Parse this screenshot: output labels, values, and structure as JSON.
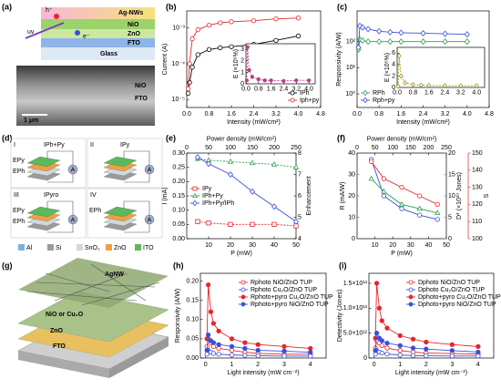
{
  "panel_labels": [
    "(a)",
    "(b)",
    "(c)",
    "(d)",
    "(e)",
    "(f)",
    "(g)",
    "(h)",
    "(i)"
  ],
  "panel_a": {
    "layers": [
      "Ag-NWs",
      "NiO",
      "ZnO",
      "FTO",
      "Glass"
    ],
    "labels": [
      "uv",
      "h⁺",
      "e⁻"
    ],
    "sem_labels": [
      "NiO",
      "FTO"
    ],
    "scale_bar": "1 μm"
  },
  "panel_d": {
    "subpanels": [
      {
        "numeral": "I",
        "current": "IPh+Py",
        "fields": [
          {
            "label": "EPy",
            "color": "#e8262a"
          },
          {
            "label": "EPh",
            "color": "#2a6fd0"
          }
        ]
      },
      {
        "numeral": "II",
        "current": "IPy",
        "fields": []
      },
      {
        "numeral": "III",
        "current": "IPyro",
        "fields": [
          {
            "label": "EPy",
            "color": "#e8262a"
          },
          {
            "label": "EPh",
            "color": "#2a6fd0"
          }
        ]
      },
      {
        "numeral": "IV",
        "current": null,
        "fields": [
          {
            "label": "EPh",
            "color": "#2a6fd0"
          }
        ]
      }
    ],
    "ammeter": "A",
    "legend": [
      {
        "name": "Al",
        "color": "#7fb0d8"
      },
      {
        "name": "Si",
        "color": "#9a9a9a"
      },
      {
        "name": "SnO₂",
        "color": "#cfd8e0"
      },
      {
        "name": "ZnO",
        "color": "#f0a040"
      },
      {
        "name": "ITO",
        "color": "#5cb85c"
      }
    ]
  },
  "panel_g": {
    "layers": [
      "AgNW",
      "NiO or Cu₂O",
      "ZnO",
      "FTO"
    ]
  },
  "chart_data": [
    {
      "type": "line",
      "xlabel": "Intensity (mW/cm²)",
      "ylabel": "Current (A)",
      "xlim": [
        0,
        4.8
      ],
      "xticks": [
        {
          "value": 0,
          "label": "0.0"
        },
        0.8,
        1.6,
        2.4,
        3.2,
        {
          "value": 4,
          "label": "4.0"
        },
        4.8
      ],
      "yscale": "log",
      "ylim": [
        6e-06,
        0.003
      ],
      "yticks": [
        {
          "value": 1e-05,
          "label": "10⁻⁵"
        },
        {
          "value": 0.0001,
          "label": "10⁻⁴"
        },
        {
          "value": 0.001,
          "label": "10⁻³"
        }
      ],
      "x": [
        0.05,
        0.1,
        0.2,
        0.4,
        0.8,
        1.2,
        1.6,
        2.4,
        3.2,
        4.0
      ],
      "series": [
        {
          "name": "IPh",
          "color": "#000000",
          "marker": "circle",
          "filled": false,
          "values": [
            1.5e-05,
            3e-05,
            8e-05,
            0.00018,
            0.00025,
            0.00028,
            0.0003,
            0.00035,
            0.00045,
            0.0006
          ]
        },
        {
          "name": "Iph+py",
          "color": "#e8262a",
          "marker": "circle",
          "filled": false,
          "values": [
            2e-05,
            0.0001,
            0.0005,
            0.0009,
            0.0012,
            0.0014,
            0.0015,
            0.0016,
            0.0018,
            0.0019
          ]
        }
      ],
      "legend": "lower right",
      "inset": {
        "type": "line",
        "ylabel": "E (×10⁵%)",
        "xlim": [
          0,
          4.4
        ],
        "xticks": [
          {
            "value": 0,
            "label": "0.0"
          },
          0.8,
          1.6,
          2.4,
          3.2,
          {
            "value": 4,
            "label": "4.0"
          }
        ],
        "ylim": [
          0,
          3.5
        ],
        "yticks": [
          0,
          1,
          2,
          3
        ],
        "x": [
          0.05,
          0.1,
          0.2,
          0.4,
          0.8,
          1.2,
          1.6,
          2.4,
          3.2,
          4.0
        ],
        "series": [
          {
            "color": "#c0398c",
            "marker": "circle",
            "filled": true,
            "dash": true,
            "values": [
              0.3,
              3.2,
              1.2,
              0.6,
              0.4,
              0.3,
              0.3,
              0.25,
              0.3,
              0.3
            ]
          }
        ]
      }
    },
    {
      "type": "line",
      "xlabel": "Intensity (mW/cm²)",
      "ylabel": "Responsivity (A/W)",
      "xlim": [
        0,
        4.8
      ],
      "xticks": [
        {
          "value": 0,
          "label": "0.0"
        },
        0.8,
        1.6,
        2.4,
        3.2,
        {
          "value": 4,
          "label": "4.0"
        },
        4.8
      ],
      "yscale": "log",
      "ylim": [
        0.3,
        1500
      ],
      "yticks": [
        {
          "value": 1,
          "label": "10⁰"
        },
        {
          "value": 10,
          "label": "10¹"
        },
        {
          "value": 100,
          "label": "10²"
        }
      ],
      "x": [
        0.05,
        0.1,
        0.2,
        0.4,
        0.8,
        1.2,
        1.6,
        2.4,
        3.2,
        4.0
      ],
      "series": [
        {
          "name": "RPh",
          "color": "#2e9e4f",
          "marker": "diamond",
          "filled": false,
          "values": [
            50,
            120,
            110,
            100,
            100,
            100,
            100,
            100,
            100,
            100
          ]
        },
        {
          "name": "Rph+py",
          "color": "#3b4fd8",
          "marker": "diamond",
          "filled": false,
          "values": [
            60,
            400,
            350,
            300,
            250,
            230,
            220,
            210,
            200,
            190
          ]
        }
      ],
      "legend": "lower left",
      "inset": {
        "type": "line",
        "ylabel": "E (×10⁵%)",
        "xlim": [
          0,
          4.4
        ],
        "xticks": [
          {
            "value": 0,
            "label": "0.0"
          },
          0.8,
          1.6,
          2.4,
          3.2,
          {
            "value": 4,
            "label": "4.0"
          }
        ],
        "ylim": [
          0,
          7
        ],
        "yticks": [
          0,
          2,
          4,
          6
        ],
        "x": [
          0.05,
          0.1,
          0.2,
          0.4,
          0.8,
          1.2,
          1.6,
          2.4,
          3.2,
          4.0
        ],
        "series": [
          {
            "color": "#9a9a1e",
            "marker": "diamond",
            "filled": false,
            "dash": true,
            "values": [
              0.2,
              5.5,
              2,
              0.8,
              0.5,
              0.4,
              0.35,
              0.3,
              0.3,
              0.3
            ]
          }
        ]
      }
    },
    {
      "type": "line",
      "xlabel": "P (mW)",
      "ylabel": "I (mA)",
      "x2label": "Power density (mW/cm²)",
      "y2label": "Enhancement",
      "xlim": [
        0,
        50
      ],
      "xticks": [
        10,
        20,
        30,
        40,
        50
      ],
      "x2lim": [
        0,
        250
      ],
      "x2ticks": [
        0,
        50,
        100,
        150,
        200,
        250
      ],
      "ylim": [
        0,
        0.3
      ],
      "yticks": [
        {
          "value": 0,
          "label": "0.00"
        },
        0.05,
        {
          "value": 0.1,
          "label": "0.10"
        },
        0.15,
        {
          "value": 0.2,
          "label": "0.20"
        },
        0.25,
        {
          "value": 0.3,
          "label": "0.30"
        }
      ],
      "y2lim": [
        4,
        8
      ],
      "y2ticks": [
        4,
        5,
        6,
        7,
        8
      ],
      "x": [
        5,
        10,
        20,
        30,
        40,
        50
      ],
      "series": [
        {
          "name": "IPy",
          "color": "#e8262a",
          "marker": "square",
          "filled": false,
          "dash": true,
          "values": [
            0.06,
            0.055,
            0.05,
            0.05,
            0.05,
            0.045
          ]
        },
        {
          "name": "IPh+Py",
          "color": "#2e9e4f",
          "marker": "triangle",
          "filled": false,
          "dash": true,
          "values": [
            0.28,
            0.275,
            0.27,
            0.265,
            0.26,
            0.25
          ]
        },
        {
          "name": "IPh+Py/IPh",
          "color": "#3b4fd8",
          "marker": "diamond",
          "filled": false,
          "axis": "y2",
          "values": [
            7.8,
            7.5,
            7,
            6.2,
            5.5,
            4.8
          ]
        }
      ],
      "legend": "center left"
    },
    {
      "type": "line",
      "xlabel": "P (mW)",
      "ylabel": "R (mA/W)",
      "x2label": "Power density (mW/cm²)",
      "y2label": "D* (×10¹⁰ Jones)",
      "y3label": "S",
      "xlim": [
        0,
        50
      ],
      "xticks": [
        10,
        20,
        30,
        40,
        50
      ],
      "x2lim": [
        0,
        250
      ],
      "x2ticks": [
        0,
        50,
        100,
        150,
        200,
        250
      ],
      "ylim": [
        0,
        40
      ],
      "yticks": [
        0,
        10,
        20,
        30,
        40
      ],
      "ycolor": "#3b4fd8",
      "y2lim": [
        0,
        20
      ],
      "y2ticks": [
        0,
        5,
        10,
        15,
        20
      ],
      "y2color": "#2e9e4f",
      "y3lim": [
        100,
        150
      ],
      "y3ticks": [
        100,
        110,
        120,
        130,
        140,
        150
      ],
      "y3color": "#e8262a",
      "x": [
        8,
        15,
        25,
        35,
        45
      ],
      "series": [
        {
          "color": "#3b4fd8",
          "marker": "circle",
          "filled": false,
          "values": [
            37,
            20,
            14,
            11,
            9
          ]
        },
        {
          "color": "#2e9e4f",
          "marker": "triangle",
          "filled": false,
          "axis": "y2",
          "values": [
            14,
            11,
            8,
            7,
            6
          ]
        },
        {
          "color": "#e8262a",
          "marker": "circle",
          "filled": false,
          "axis": "y3",
          "values": [
            145,
            135,
            130,
            125,
            120
          ]
        }
      ]
    },
    {
      "type": "line",
      "xlabel": "Light intensity (mW cm⁻²)",
      "ylabel": "Responsivity (A/W)",
      "xlim": [
        -0.2,
        4.6
      ],
      "xticks": [
        0,
        1,
        2,
        3,
        4
      ],
      "ylim": [
        0,
        0.22
      ],
      "yticks": [
        {
          "value": 0,
          "label": "0.00"
        },
        0.05,
        {
          "value": 0.1,
          "label": "0.10"
        },
        0.15,
        {
          "value": 0.2,
          "label": "0.20"
        }
      ],
      "x": [
        0.05,
        0.1,
        0.2,
        0.3,
        0.5,
        1,
        1.5,
        2,
        3,
        4
      ],
      "series": [
        {
          "name": "Rphoto NiO/ZnO TUP",
          "color": "#e8262a",
          "marker": "circle",
          "filled": false,
          "values": [
            0.03,
            0.05,
            0.04,
            0.03,
            0.025,
            0.02,
            0.015,
            0.012,
            0.01,
            0.01
          ]
        },
        {
          "name": "Rphoto Cu₂O/ZnO TUP",
          "color": "#3b4fd8",
          "marker": "circle",
          "filled": false,
          "values": [
            0.01,
            0.02,
            0.015,
            0.012,
            0.01,
            0.008,
            0.007,
            0.006,
            0.005,
            0.005
          ]
        },
        {
          "name": "Rphoto+pyro Cu₂O/ZnO TUP",
          "color": "#e8262a",
          "marker": "circle",
          "filled": true,
          "values": [
            0.05,
            0.19,
            0.12,
            0.09,
            0.07,
            0.05,
            0.04,
            0.035,
            0.03,
            0.025
          ]
        },
        {
          "name": "Rphoto+pyro NiO/ZnO TUP",
          "color": "#3b4fd8",
          "marker": "circle",
          "filled": true,
          "values": [
            0.02,
            0.06,
            0.045,
            0.04,
            0.035,
            0.03,
            0.025,
            0.02,
            0.018,
            0.015
          ]
        }
      ],
      "legend": "upper right"
    },
    {
      "type": "line",
      "xlabel": "Light intensity (mW cm⁻²)",
      "ylabel": "Detectivity (Jones)",
      "xlim": [
        -0.2,
        4.6
      ],
      "xticks": [
        0,
        1,
        2,
        3,
        4
      ],
      "ylim": [
        0,
        17000000000000
      ],
      "yticks": [
        0,
        {
          "value": 5000000000000,
          "label": "5.0×10¹²"
        },
        {
          "value": 10000000000000,
          "label": "1.0×10¹³"
        },
        {
          "value": 15000000000000,
          "label": "1.5×10¹³"
        }
      ],
      "x": [
        0.05,
        0.1,
        0.2,
        0.3,
        0.5,
        1,
        1.5,
        2,
        3,
        4
      ],
      "series": [
        {
          "name": "Dphoto NiO/ZnO TUP",
          "color": "#e8262a",
          "marker": "circle",
          "filled": false,
          "values": [
            2000000000000,
            3500000000000,
            3000000000000,
            2500000000000,
            2000000000000,
            1500000000000,
            1200000000000,
            1000000000000,
            900000000000,
            800000000000
          ]
        },
        {
          "name": "Dphoto Cu₂O/ZnO TUP",
          "color": "#3b4fd8",
          "marker": "circle",
          "filled": false,
          "values": [
            800000000000,
            1500000000000,
            1200000000000,
            1000000000000,
            800000000000,
            600000000000,
            500000000000,
            450000000000,
            400000000000,
            400000000000
          ]
        },
        {
          "name": "Dphoto+pyro Cu₂O/ZnO TUP",
          "color": "#e8262a",
          "marker": "circle",
          "filled": true,
          "values": [
            4000000000000,
            15000000000000,
            10000000000000,
            7500000000000,
            6000000000000,
            4500000000000,
            3800000000000,
            3200000000000,
            2700000000000,
            2300000000000
          ]
        },
        {
          "name": "Dphoto+pyro NiO/ZnO TUP",
          "color": "#3b4fd8",
          "marker": "circle",
          "filled": true,
          "values": [
            1500000000000,
            5000000000000,
            4000000000000,
            3500000000000,
            3000000000000,
            2500000000000,
            2000000000000,
            1800000000000,
            1500000000000,
            1200000000000
          ]
        }
      ],
      "legend": "upper right"
    }
  ]
}
